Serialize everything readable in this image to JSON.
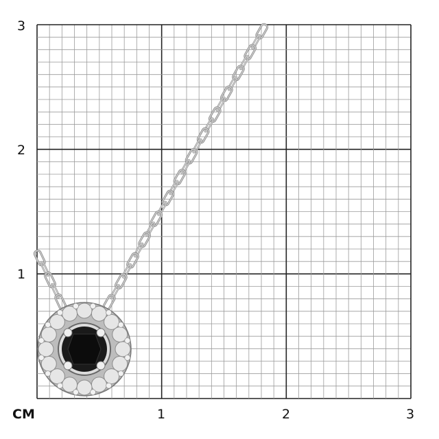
{
  "scale": {
    "unit_label": "CM",
    "x_ticks": [
      "1",
      "2",
      "3"
    ],
    "y_ticks": [
      "1",
      "2",
      "3"
    ],
    "range_cm": [
      0,
      3
    ],
    "minor_divisions_per_cm": 10
  },
  "image": {
    "subject": "pendant-necklace",
    "colors": {
      "metal": "#d9d9d9",
      "center_stone": "#1a1a1a",
      "grid_minor": "#9a9a9a",
      "grid_major": "#222222"
    }
  }
}
